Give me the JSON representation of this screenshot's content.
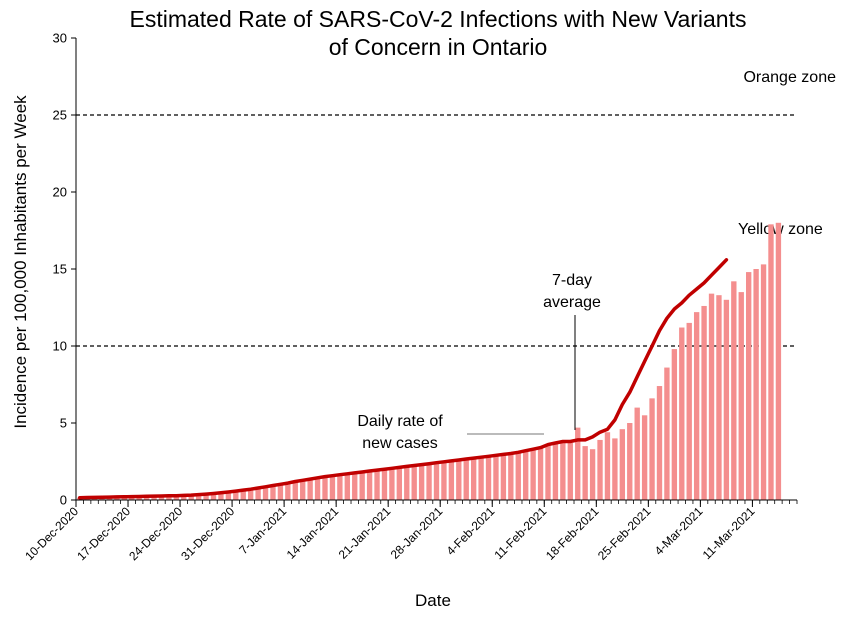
{
  "chart_data": {
    "type": "bar",
    "title_lines": [
      "Estimated Rate of SARS-CoV-2 Infections with New Variants",
      "of Concern in Ontario"
    ],
    "xlabel": "Date",
    "ylabel": "Incidence per 100,000 Inhabitants per Week",
    "ylim": [
      0,
      30
    ],
    "yticks": [
      0,
      5,
      10,
      15,
      20,
      25,
      30
    ],
    "x_start": "10-Dec-2020",
    "x_end": "17-Mar-2021",
    "x_tick_labels": [
      "10-Dec-2020",
      "17-Dec-2020",
      "24-Dec-2020",
      "31-Dec-2020",
      "7-Jan-2021",
      "14-Jan-2021",
      "21-Jan-2021",
      "28-Jan-2021",
      "4-Feb-2021",
      "11-Feb-2021",
      "18-Feb-2021",
      "25-Feb-2021",
      "4-Mar-2021",
      "11-Mar-2021"
    ],
    "reference_lines": [
      {
        "value": 25,
        "label": "Orange zone"
      },
      {
        "value": 10,
        "label": "Yellow zone"
      }
    ],
    "annotations": {
      "daily": "Daily rate of\nnew cases",
      "average": "7-day\naverage"
    },
    "colors": {
      "bars": "#f48e8e",
      "line": "#c00000",
      "reference": "#000000"
    },
    "series": [
      {
        "name": "Daily rate of new cases",
        "type": "bar",
        "values": [
          0.15,
          0.16,
          0.17,
          0.18,
          0.19,
          0.2,
          0.21,
          0.22,
          0.23,
          0.24,
          0.25,
          0.26,
          0.27,
          0.28,
          0.3,
          0.32,
          0.35,
          0.38,
          0.42,
          0.47,
          0.52,
          0.58,
          0.64,
          0.7,
          0.78,
          0.86,
          0.94,
          1.02,
          1.1,
          1.2,
          1.28,
          1.36,
          1.44,
          1.52,
          1.58,
          1.64,
          1.7,
          1.76,
          1.82,
          1.88,
          1.94,
          2.0,
          2.06,
          2.12,
          2.18,
          2.24,
          2.3,
          2.36,
          2.42,
          2.48,
          2.54,
          2.6,
          2.66,
          2.72,
          2.78,
          2.84,
          2.9,
          2.96,
          3.02,
          3.1,
          3.2,
          3.3,
          3.4,
          3.6,
          3.7,
          3.7,
          3.7,
          4.7,
          3.5,
          3.3,
          3.9,
          4.4,
          4.0,
          4.6,
          5.0,
          6.0,
          5.5,
          6.6,
          7.4,
          8.6,
          9.8,
          11.2,
          11.5,
          12.2,
          12.6,
          13.4,
          13.3,
          13.0,
          14.2,
          13.5,
          14.8,
          15.0,
          15.3,
          17.9,
          18.0
        ]
      },
      {
        "name": "7-day average",
        "type": "line",
        "values": [
          0.15,
          0.16,
          0.17,
          0.18,
          0.19,
          0.2,
          0.21,
          0.22,
          0.23,
          0.24,
          0.25,
          0.26,
          0.27,
          0.28,
          0.3,
          0.32,
          0.35,
          0.38,
          0.42,
          0.47,
          0.52,
          0.58,
          0.64,
          0.7,
          0.78,
          0.86,
          0.94,
          1.02,
          1.1,
          1.2,
          1.28,
          1.36,
          1.44,
          1.52,
          1.58,
          1.64,
          1.7,
          1.76,
          1.82,
          1.88,
          1.94,
          2.0,
          2.06,
          2.12,
          2.18,
          2.24,
          2.3,
          2.36,
          2.42,
          2.48,
          2.54,
          2.6,
          2.66,
          2.72,
          2.78,
          2.84,
          2.9,
          2.96,
          3.02,
          3.1,
          3.2,
          3.3,
          3.4,
          3.6,
          3.7,
          3.8,
          3.8,
          3.9,
          3.9,
          4.1,
          4.4,
          4.6,
          5.2,
          6.2,
          7.0,
          8.0,
          9.0,
          10.0,
          11.0,
          11.8,
          12.4,
          12.8,
          13.3,
          13.7,
          14.1,
          14.6,
          15.1,
          15.6
        ]
      }
    ]
  }
}
